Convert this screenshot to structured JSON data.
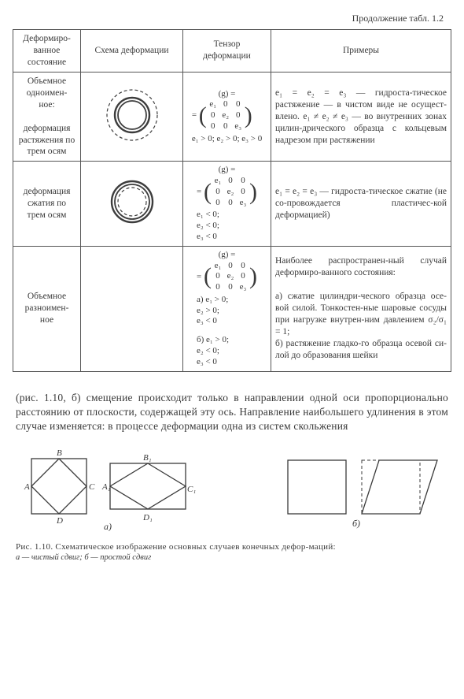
{
  "continuation_label": "Продолжение табл. 1.2",
  "headers": {
    "state": "Деформиро-\nванное\nсостояние",
    "scheme": "Схема деформации",
    "tensor": "Тензор\nдеформации",
    "examples": "Примеры"
  },
  "rows": [
    {
      "state": "Объемное одноимен-\nное:\n\nдеформация растяжения по трем осям",
      "scheme": "tension",
      "scheme_style": {
        "solid_r": 22,
        "dashed_r": 32,
        "stroke_solid": 2.4,
        "stroke_dash": 1.2,
        "dash": "4 3",
        "color": "#3d3d3d"
      },
      "tensor_head": "(g) =",
      "tensor_cells": [
        "e₁",
        "0",
        "0",
        "0",
        "e₂",
        "0",
        "0",
        "0",
        "e₃"
      ],
      "conditions": "e₁ > 0; e₂ > 0; e₃ > 0",
      "examples": "e₁ = e₂ = e₃ — гидроста-тическое растяжение — в чистом виде не осущест-влено. e₁ ≠ e₂ ≠ e₃ — во внутренних зонах цилин-дрического образца с кольцевым надрезом при растяжении"
    },
    {
      "state": "деформация сжатия по трем осям",
      "scheme": "compression",
      "scheme_style": {
        "solid_r": 26,
        "dashed_r": 18,
        "stroke_solid": 2.4,
        "stroke_dash": 1.2,
        "dash": "4 3",
        "color": "#3d3d3d"
      },
      "tensor_head": "(g) =",
      "tensor_cells": [
        "e₁",
        "0",
        "0",
        "0",
        "e₂",
        "0",
        "0",
        "0",
        "e₃"
      ],
      "conditions": "e₁ < 0;\ne₂ < 0;\ne₃ < 0",
      "examples": "e₁ = e₂ = e₃ — гидроста-тическое сжатие (не со-провождается пластичес-кой деформацией)"
    },
    {
      "state": "Объемное разноимен-\nное",
      "scheme": "none",
      "tensor_head": "(g) =",
      "tensor_cells": [
        "e₁",
        "0",
        "0",
        "0",
        "e₂",
        "0",
        "0",
        "0",
        "e₃"
      ],
      "conditions_a_label": "а)",
      "conditions_a": "e₁ > 0;\ne₂ > 0;\ne₃ < 0",
      "conditions_b_label": "б)",
      "conditions_b": "e₁ > 0;\ne₂ < 0;\ne₃ < 0",
      "examples": "Наиболее распространен-ный случай деформиро-ванного состояния:\n\nа) сжатие цилиндри-ческого образца осе-вой силой. Тонкостен-ные шаровые сосуды при нагрузке внутрен-ним давлением σ₂/σ₁ = 1;\nб) растяжение гладко-го образца осевой си-лой до образования шейки"
    }
  ],
  "paragraph": "(рис. 1.10, б) смещение происходит только в направлении одной оси пропорционально расстоянию от плоскости, содержащей эту ось. Направление наибольшего удлинения в этом случае изменяется: в процессе деформации одна из систем скольжения",
  "figure": {
    "label_a": "а)",
    "label_b": "б)",
    "letters": {
      "A": "A",
      "B": "B",
      "C": "C",
      "D": "D",
      "A1": "A₁",
      "B1": "B₁",
      "C1": "C₁",
      "D1": "D₁"
    },
    "caption_main": "Рис. 1.10. Схематическое изображение основных случаев конечных дефор-маций:",
    "caption_sub": "а — чистый сдвиг; б — простой сдвиг",
    "style": {
      "stroke": "#3a3a3a",
      "stroke_w": 1.3,
      "dash": "4 3"
    }
  }
}
